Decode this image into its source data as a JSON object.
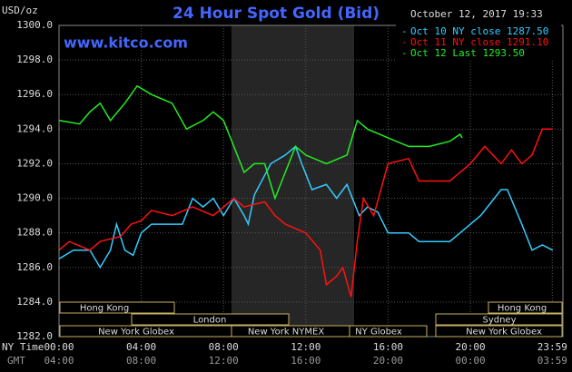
{
  "chart_data": {
    "type": "line",
    "title": "24 Hour Spot Gold (Bid)",
    "subtitle": "www.kitco.com",
    "timestamp": "October 12, 2017 19:33",
    "y_label": "USD/oz",
    "x_label": "NY Time",
    "x2_label": "GMT",
    "xlim": [
      0,
      24.5
    ],
    "ylim": [
      1282,
      1300
    ],
    "grid": true,
    "legend": "top-right",
    "xticks": [
      {
        "value": 0,
        "label": "00:00"
      },
      {
        "value": 4,
        "label": "04:00"
      },
      {
        "value": 8,
        "label": "08:00"
      },
      {
        "value": 12,
        "label": "12:00"
      },
      {
        "value": 16,
        "label": "16:00"
      },
      {
        "value": 20,
        "label": "20:00"
      },
      {
        "value": 23.983,
        "label": "23:59"
      }
    ],
    "x2ticks": [
      "04:00",
      "08:00",
      "12:00",
      "16:00",
      "20:00",
      "00:00",
      "03:59"
    ],
    "yticks": [
      {
        "value": 1282,
        "label": "1282.0"
      },
      {
        "value": 1284,
        "label": "1284.0"
      },
      {
        "value": 1286,
        "label": "1286.0"
      },
      {
        "value": 1288,
        "label": "1288.0"
      },
      {
        "value": 1290,
        "label": "1290.0"
      },
      {
        "value": 1292,
        "label": "1292.0"
      },
      {
        "value": 1294,
        "label": "1294.0"
      },
      {
        "value": 1296,
        "label": "1296.0"
      },
      {
        "value": 1298,
        "label": "1298.0"
      },
      {
        "value": 1300,
        "label": "1300.0"
      }
    ],
    "sessions": [
      "Hong Kong",
      "Hong Kong",
      "London",
      "Sydney",
      "New York Globex",
      "New York NYMEX",
      "NY Globex",
      "New York Globex"
    ],
    "series": [
      {
        "name": "Oct 10 NY close 1287.50",
        "color": "#33ccff",
        "x": [
          0,
          0.7,
          1.5,
          2,
          2.5,
          2.8,
          3.2,
          3.6,
          4,
          4.5,
          6,
          6.5,
          7,
          7.5,
          8,
          8.5,
          9,
          9.2,
          9.5,
          10.3,
          11,
          11.5,
          11.8,
          12.3,
          13,
          13.5,
          14,
          14.6,
          15,
          15.5,
          16,
          17,
          17.5,
          19,
          19.5,
          20.5,
          21.5,
          21.8,
          22.5,
          23,
          23.5,
          24
        ],
        "values": [
          1286.5,
          1287,
          1287,
          1286,
          1287,
          1288.5,
          1287,
          1286.7,
          1288,
          1288.5,
          1288.5,
          1290,
          1289.5,
          1290,
          1289,
          1290,
          1289,
          1288.5,
          1290.2,
          1292,
          1292.5,
          1293,
          1292,
          1290.5,
          1290.8,
          1290,
          1290.8,
          1289,
          1289.5,
          1289.2,
          1288,
          1288,
          1287.5,
          1287.5,
          1288,
          1289,
          1290.5,
          1290.5,
          1288.5,
          1287,
          1287.3,
          1287
        ]
      },
      {
        "name": "Oct 11 NY close 1291.10",
        "color": "#ff1111",
        "x": [
          0,
          0.5,
          1.5,
          2,
          3,
          3.5,
          4,
          4.5,
          5.5,
          6.5,
          7.5,
          8.5,
          9,
          10,
          10.5,
          11,
          12,
          12.7,
          13,
          13.5,
          13.8,
          14.2,
          14.5,
          14.8,
          15.3,
          16,
          17,
          17.5,
          19,
          20,
          20.7,
          21.5,
          22,
          22.5,
          23,
          23.5,
          24
        ],
        "values": [
          1287,
          1287.5,
          1287,
          1287.5,
          1287.8,
          1288.5,
          1288.7,
          1289.3,
          1289,
          1289.5,
          1289,
          1290,
          1289.5,
          1289.8,
          1289,
          1288.5,
          1288,
          1287,
          1285,
          1285.5,
          1286,
          1284.3,
          1287.5,
          1290,
          1289,
          1292,
          1292.3,
          1291,
          1291,
          1292,
          1293,
          1292,
          1292.8,
          1292,
          1292.5,
          1294,
          1294
        ]
      },
      {
        "name": "Oct 12 Last 1293.50",
        "color": "#22ee22",
        "x": [
          0,
          1,
          1.5,
          2,
          2.5,
          3.2,
          3.8,
          4.5,
          5.5,
          6.2,
          7,
          7.5,
          8,
          8.5,
          9,
          9.5,
          10,
          10.5,
          11,
          11.5,
          12,
          13,
          14,
          14.5,
          15,
          16,
          17,
          18,
          19,
          19.5,
          19.6
        ],
        "values": [
          1294.5,
          1294.3,
          1295,
          1295.5,
          1294.5,
          1295.5,
          1296.5,
          1296,
          1295.5,
          1294,
          1294.5,
          1295,
          1294.5,
          1293,
          1291.5,
          1292,
          1292,
          1290,
          1291.5,
          1293,
          1292.5,
          1292,
          1292.5,
          1294.5,
          1294,
          1293.5,
          1293,
          1293,
          1293.3,
          1293.7,
          1293.5
        ]
      }
    ]
  }
}
